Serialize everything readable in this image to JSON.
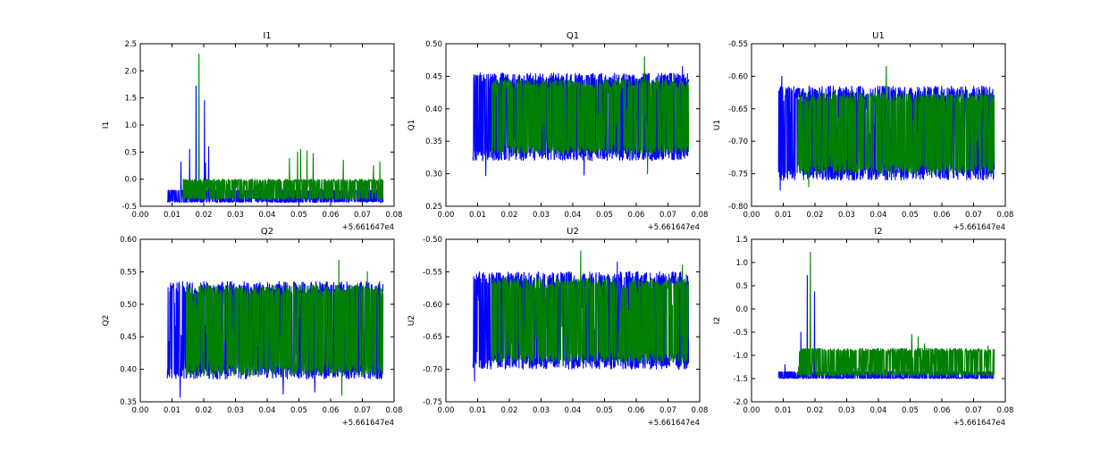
{
  "colors": {
    "series_a": "#0000ff",
    "series_b": "#008000",
    "axes": "#000000",
    "background": "#ffffff"
  },
  "chart_data": [
    {
      "type": "line",
      "title": "I1",
      "ylabel": "I1",
      "xlabel": "",
      "xlim": [
        0.0,
        0.08
      ],
      "ylim": [
        -0.5,
        2.5
      ],
      "xticks": [
        "0.00",
        "0.01",
        "0.02",
        "0.03",
        "0.04",
        "0.05",
        "0.06",
        "0.07",
        "0.08"
      ],
      "yticks": [
        "-0.5",
        "0.0",
        "0.5",
        "1.0",
        "1.5",
        "2.0",
        "2.5"
      ],
      "offset_label": "+5.661647e4",
      "series": [
        {
          "color": "#0000ff",
          "x_range": [
            0.0085,
            0.0765
          ],
          "band": [
            -0.43,
            -0.2
          ],
          "spikes": [
            [
              0.0128,
              0.32
            ],
            [
              0.0155,
              0.55
            ],
            [
              0.0175,
              1.72
            ],
            [
              0.0202,
              1.45
            ],
            [
              0.0215,
              0.6
            ],
            [
              0.0205,
              0.3
            ]
          ]
        },
        {
          "color": "#008000",
          "x_range": [
            0.0135,
            0.0765
          ],
          "band": [
            -0.38,
            0.0
          ],
          "spikes": [
            [
              0.0185,
              2.31
            ],
            [
              0.047,
              0.38
            ],
            [
              0.0495,
              0.5
            ],
            [
              0.0505,
              0.55
            ],
            [
              0.0525,
              0.52
            ],
            [
              0.0545,
              0.47
            ],
            [
              0.064,
              0.35
            ],
            [
              0.0735,
              0.25
            ],
            [
              0.0755,
              0.32
            ]
          ]
        }
      ]
    },
    {
      "type": "line",
      "title": "Q1",
      "ylabel": "Q1",
      "xlabel": "",
      "xlim": [
        0.0,
        0.08
      ],
      "ylim": [
        0.25,
        0.5
      ],
      "xticks": [
        "0.00",
        "0.01",
        "0.02",
        "0.03",
        "0.04",
        "0.05",
        "0.06",
        "0.07",
        "0.08"
      ],
      "yticks": [
        "0.25",
        "0.30",
        "0.35",
        "0.40",
        "0.45",
        "0.50"
      ],
      "offset_label": "+5.661647e4",
      "series": [
        {
          "color": "#0000ff",
          "x_range": [
            0.0085,
            0.0765
          ],
          "band": [
            0.32,
            0.455
          ],
          "spikes": [
            [
              0.0125,
              0.297
            ],
            [
              0.0435,
              0.298
            ],
            [
              0.0745,
              0.465
            ]
          ]
        },
        {
          "color": "#008000",
          "x_range": [
            0.0145,
            0.0765
          ],
          "band": [
            0.33,
            0.445
          ],
          "spikes": [
            [
              0.0625,
              0.48
            ],
            [
              0.0635,
              0.3
            ]
          ]
        }
      ]
    },
    {
      "type": "line",
      "title": "U1",
      "ylabel": "U1",
      "xlabel": "",
      "xlim": [
        0.0,
        0.08
      ],
      "ylim": [
        -0.8,
        -0.55
      ],
      "xticks": [
        "0.00",
        "0.01",
        "0.02",
        "0.03",
        "0.04",
        "0.05",
        "0.06",
        "0.07",
        "0.08"
      ],
      "yticks": [
        "-0.80",
        "-0.75",
        "-0.70",
        "-0.65",
        "-0.60",
        "-0.55"
      ],
      "offset_label": "+5.661647e4",
      "series": [
        {
          "color": "#0000ff",
          "x_range": [
            0.0085,
            0.0765
          ],
          "band": [
            -0.76,
            -0.615
          ],
          "spikes": [
            [
              0.009,
              -0.775
            ],
            [
              0.0095,
              -0.6
            ]
          ]
        },
        {
          "color": "#008000",
          "x_range": [
            0.0145,
            0.0765
          ],
          "band": [
            -0.75,
            -0.625
          ],
          "spikes": [
            [
              0.0425,
              -0.585
            ],
            [
              0.018,
              -0.77
            ]
          ]
        }
      ]
    },
    {
      "type": "line",
      "title": "Q2",
      "ylabel": "Q2",
      "xlabel": "",
      "xlim": [
        0.0,
        0.08
      ],
      "ylim": [
        0.35,
        0.6
      ],
      "xticks": [
        "0.00",
        "0.01",
        "0.02",
        "0.03",
        "0.04",
        "0.05",
        "0.06",
        "0.07",
        "0.08"
      ],
      "yticks": [
        "0.35",
        "0.40",
        "0.45",
        "0.50",
        "0.55",
        "0.60"
      ],
      "offset_label": "+5.661647e4",
      "series": [
        {
          "color": "#0000ff",
          "x_range": [
            0.0085,
            0.0765
          ],
          "band": [
            0.385,
            0.535
          ],
          "spikes": [
            [
              0.0125,
              0.357
            ],
            [
              0.045,
              0.362
            ],
            [
              0.055,
              0.365
            ]
          ]
        },
        {
          "color": "#008000",
          "x_range": [
            0.0145,
            0.0765
          ],
          "band": [
            0.39,
            0.53
          ],
          "spikes": [
            [
              0.0625,
              0.568
            ],
            [
              0.0635,
              0.36
            ],
            [
              0.0715,
              0.55
            ]
          ]
        }
      ]
    },
    {
      "type": "line",
      "title": "U2",
      "ylabel": "U2",
      "xlabel": "",
      "xlim": [
        0.0,
        0.08
      ],
      "ylim": [
        -0.75,
        -0.5
      ],
      "xticks": [
        "0.00",
        "0.01",
        "0.02",
        "0.03",
        "0.04",
        "0.05",
        "0.06",
        "0.07",
        "0.08"
      ],
      "yticks": [
        "-0.75",
        "-0.70",
        "-0.65",
        "-0.60",
        "-0.55",
        "-0.50"
      ],
      "offset_label": "+5.661647e4",
      "series": [
        {
          "color": "#0000ff",
          "x_range": [
            0.0085,
            0.0765
          ],
          "band": [
            -0.7,
            -0.55
          ],
          "spikes": [
            [
              0.009,
              -0.718
            ],
            [
              0.054,
              -0.535
            ]
          ]
        },
        {
          "color": "#008000",
          "x_range": [
            0.0145,
            0.0765
          ],
          "band": [
            -0.69,
            -0.56
          ],
          "spikes": [
            [
              0.0425,
              -0.518
            ],
            [
              0.0745,
              -0.54
            ]
          ]
        }
      ]
    },
    {
      "type": "line",
      "title": "I2",
      "ylabel": "I2",
      "xlabel": "",
      "xlim": [
        0.0,
        0.08
      ],
      "ylim": [
        -2.0,
        1.5
      ],
      "xticks": [
        "0.00",
        "0.01",
        "0.02",
        "0.03",
        "0.04",
        "0.05",
        "0.06",
        "0.07",
        "0.08"
      ],
      "yticks": [
        "-2.0",
        "-1.5",
        "-1.0",
        "-0.5",
        "0.0",
        "0.5",
        "1.0",
        "1.5"
      ],
      "offset_label": "+5.661647e4",
      "series": [
        {
          "color": "#0000ff",
          "x_range": [
            0.0085,
            0.0765
          ],
          "band": [
            -1.5,
            -1.35
          ],
          "spikes": [
            [
              0.0155,
              -0.5
            ],
            [
              0.0175,
              0.72
            ],
            [
              0.0198,
              0.37
            ],
            [
              0.0105,
              -1.2
            ]
          ]
        },
        {
          "color": "#008000",
          "x_range": [
            0.0145,
            0.0765
          ],
          "band": [
            -1.45,
            -0.85
          ],
          "spikes": [
            [
              0.0185,
              1.22
            ],
            [
              0.0505,
              -0.55
            ],
            [
              0.0525,
              -0.6
            ],
            [
              0.0545,
              -0.75
            ],
            [
              0.0625,
              -0.95
            ],
            [
              0.0745,
              -0.8
            ]
          ]
        }
      ]
    }
  ]
}
